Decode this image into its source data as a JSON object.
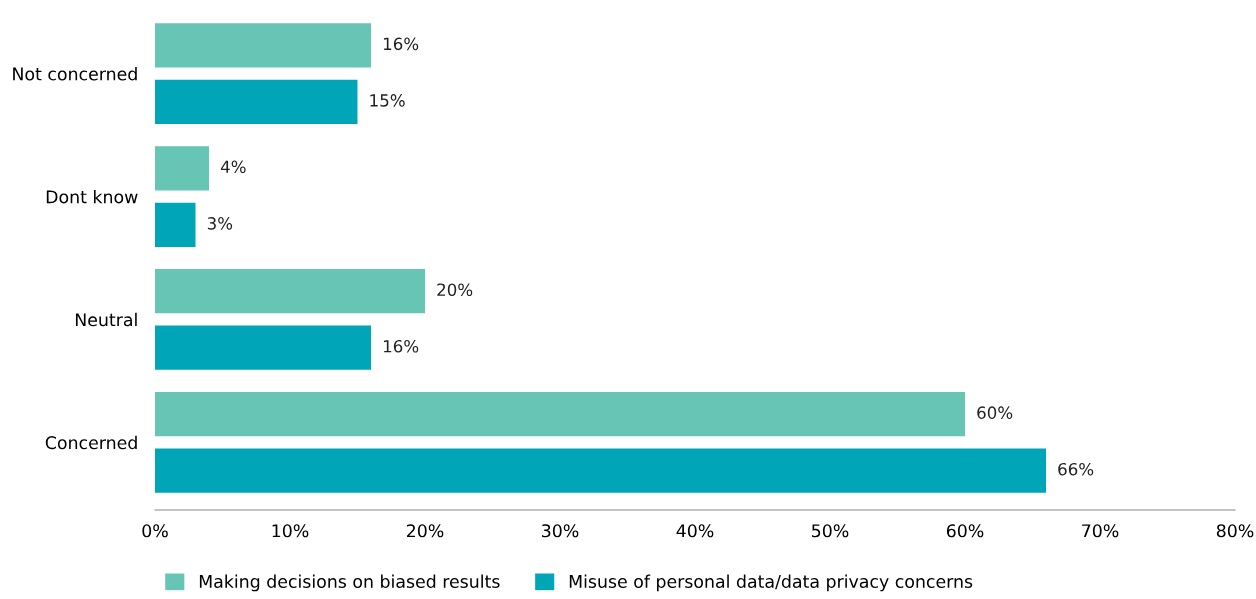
{
  "chart_data": {
    "type": "bar",
    "orientation": "horizontal",
    "categories": [
      "Not concerned",
      "Dont know",
      "Neutral",
      "Concerned"
    ],
    "series": [
      {
        "name": "Making decisions on biased results",
        "color": "#66c5b4",
        "values": [
          16,
          4,
          20,
          60
        ],
        "value_labels": [
          "16%",
          "4%",
          "20%",
          "60%"
        ]
      },
      {
        "name": "Misuse of personal data/data privacy concerns",
        "color": "#00a5b8",
        "values": [
          15,
          3,
          16,
          66
        ],
        "value_labels": [
          "15%",
          "3%",
          "16%",
          "66%"
        ]
      }
    ],
    "xlim": [
      0,
      80
    ],
    "xticks": [
      {
        "value": 0,
        "label": "0%"
      },
      {
        "value": 10,
        "label": "10%"
      },
      {
        "value": 20,
        "label": "20%"
      },
      {
        "value": 30,
        "label": "30%"
      },
      {
        "value": 40,
        "label": "40%"
      },
      {
        "value": 50,
        "label": "50%"
      },
      {
        "value": 60,
        "label": "60%"
      },
      {
        "value": 70,
        "label": "70%"
      },
      {
        "value": 80,
        "label": "80%"
      }
    ],
    "grid": false,
    "legend": "bottom"
  }
}
